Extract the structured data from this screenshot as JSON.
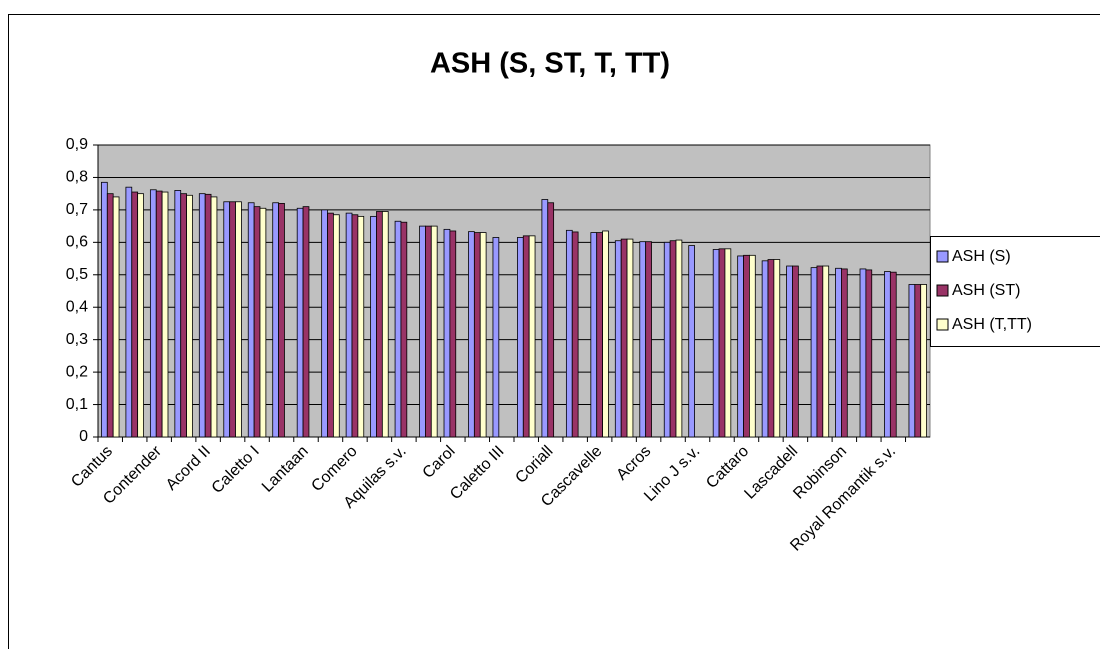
{
  "chart_data": {
    "type": "bar",
    "title": "ASH (S, ST, T, TT)",
    "categories": [
      "Cantus",
      null,
      "Contender",
      null,
      "Acord II",
      null,
      "Caletto I",
      null,
      "Lantaan",
      null,
      "Comero",
      null,
      "Aquilas s.v.",
      null,
      "Carol",
      null,
      "Caletto III",
      null,
      "Coriall",
      null,
      "Cascavelle",
      null,
      "Acros",
      null,
      "Lino J s.v.",
      null,
      "Cattaro",
      null,
      "Lascadell",
      null,
      "Robinson",
      null,
      "Royal Romantik s.v.",
      null
    ],
    "series": [
      {
        "name": "ASH (S)",
        "color": "#9999ff",
        "values": [
          0.785,
          0.77,
          0.762,
          0.76,
          0.75,
          0.725,
          0.722,
          0.722,
          0.705,
          0.7,
          0.69,
          0.68,
          0.665,
          0.65,
          0.64,
          0.633,
          0.615,
          0.615,
          0.732,
          0.637,
          0.63,
          0.605,
          0.602,
          0.6,
          0.59,
          0.578,
          0.558,
          0.543,
          0.527,
          0.522,
          0.52,
          0.518,
          0.51,
          0.47
        ]
      },
      {
        "name": "ASH (ST)",
        "color": "#993366",
        "values": [
          0.75,
          0.755,
          0.758,
          0.75,
          0.748,
          0.725,
          0.71,
          0.72,
          0.71,
          0.69,
          0.685,
          0.695,
          0.662,
          0.65,
          0.635,
          0.63,
          null,
          0.62,
          0.722,
          0.632,
          0.63,
          0.61,
          0.602,
          0.605,
          null,
          0.58,
          0.56,
          0.547,
          0.527,
          0.527,
          0.518,
          0.515,
          0.508,
          0.47
        ]
      },
      {
        "name": "ASH (T,TT)",
        "color": "#ffffcc",
        "values": [
          0.74,
          0.75,
          0.755,
          0.745,
          0.74,
          0.725,
          0.705,
          null,
          null,
          0.685,
          0.68,
          0.695,
          null,
          0.65,
          null,
          0.63,
          null,
          0.62,
          null,
          null,
          0.635,
          0.61,
          null,
          0.607,
          null,
          0.58,
          0.56,
          0.547,
          null,
          0.527,
          null,
          null,
          null,
          0.47
        ]
      }
    ],
    "ylim": [
      0,
      0.9
    ],
    "yticks": [
      0,
      {
        "value": 0.1,
        "label": "0,1"
      },
      {
        "value": 0.2,
        "label": "0,2"
      },
      {
        "value": 0.3,
        "label": "0,3"
      },
      {
        "value": 0.4,
        "label": "0,4"
      },
      {
        "value": 0.5,
        "label": "0,5"
      },
      {
        "value": 0.6,
        "label": "0,6"
      },
      {
        "value": 0.7,
        "label": "0,7"
      },
      {
        "value": 0.8,
        "label": "0,8"
      },
      {
        "value": 0.9,
        "label": "0,9"
      }
    ],
    "grid": true,
    "legend": "right"
  }
}
